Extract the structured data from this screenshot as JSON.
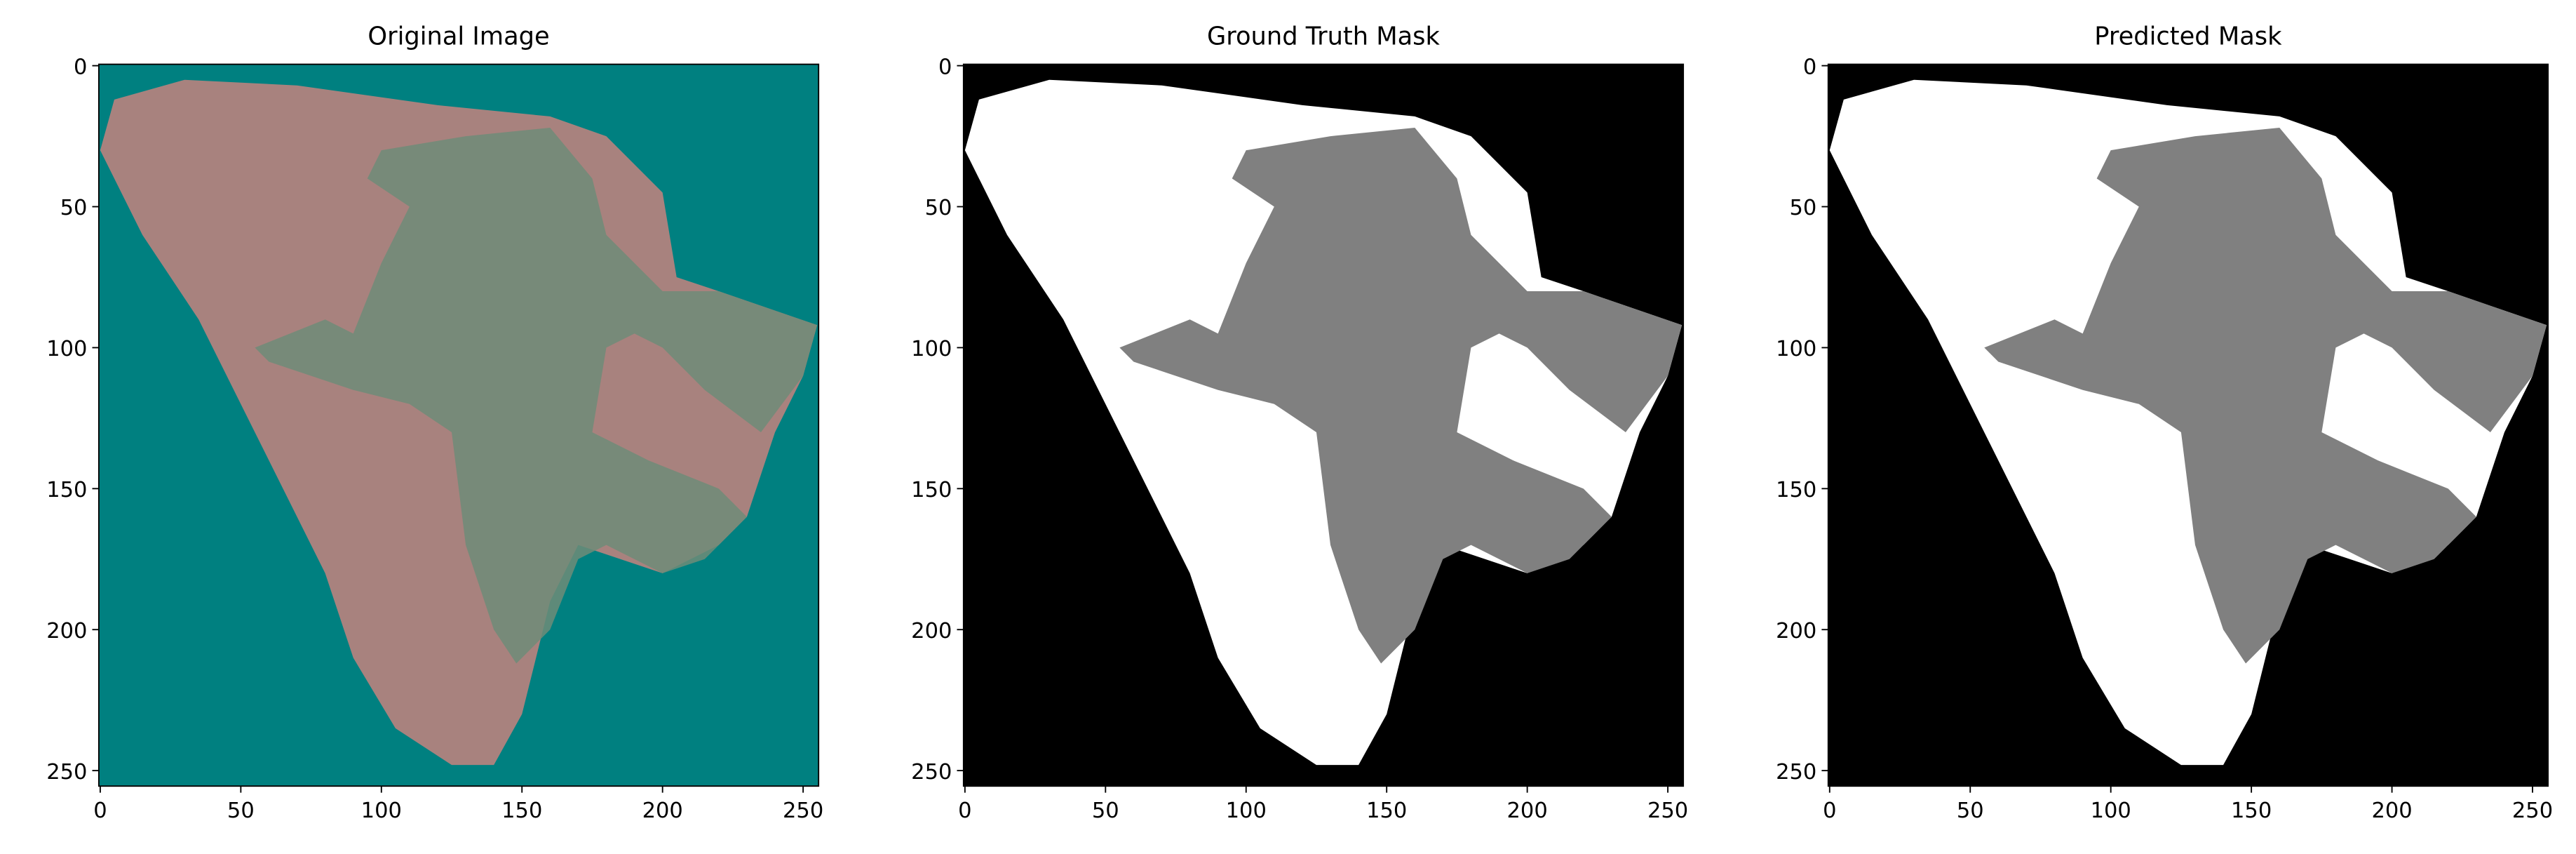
{
  "chart_data": [
    {
      "type": "image",
      "title": "Original Image",
      "xlim": [
        -0.5,
        255.5
      ],
      "ylim": [
        255.5,
        -0.5
      ],
      "xticks": [
        0,
        50,
        100,
        150,
        200,
        250
      ],
      "yticks": [
        0,
        50,
        100,
        150,
        200,
        250
      ]
    },
    {
      "type": "image",
      "title": "Ground Truth Mask",
      "xlim": [
        -0.5,
        255.5
      ],
      "ylim": [
        255.5,
        -0.5
      ],
      "xticks": [
        0,
        50,
        100,
        150,
        200,
        250
      ],
      "yticks": [
        0,
        50,
        100,
        150,
        200,
        250
      ]
    },
    {
      "type": "image",
      "title": "Predicted Mask",
      "xlim": [
        -0.5,
        255.5
      ],
      "ylim": [
        255.5,
        -0.5
      ],
      "xticks": [
        0,
        50,
        100,
        150,
        200,
        250
      ],
      "yticks": [
        0,
        50,
        100,
        150,
        200,
        250
      ]
    }
  ]
}
